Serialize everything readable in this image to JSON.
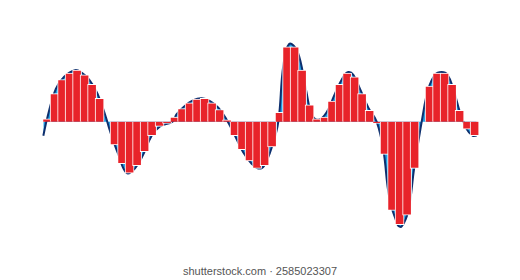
{
  "chart_data": {
    "type": "bar",
    "tick_labels": false,
    "grid": false,
    "annotations": [
      "shutterstock.com · 2585023307"
    ],
    "xlim": [
      0,
      520
    ],
    "ylim": [
      -1.5,
      1.3
    ],
    "series": [
      {
        "type": "area",
        "color": "#1e9ce3",
        "x": [
          0,
          5,
          15,
          25,
          38,
          45,
          55,
          65,
          75,
          80,
          90,
          100,
          110,
          120,
          130,
          140,
          155,
          160,
          170,
          180,
          190,
          200,
          210,
          220,
          230,
          240,
          250,
          258,
          265,
          275,
          282,
          288,
          295,
          305,
          315,
          322,
          330,
          340,
          350,
          360,
          366,
          372,
          380,
          390,
          400,
          408,
          415,
          425,
          430,
          438,
          445,
          455,
          462,
          470,
          478,
          485,
          492,
          500,
          508,
          515,
          520
        ],
        "values": [
          -0.15,
          0.05,
          0.35,
          0.48,
          0.55,
          0.53,
          0.45,
          0.3,
          0.05,
          -0.1,
          -0.35,
          -0.55,
          -0.5,
          -0.35,
          -0.15,
          -0.05,
          0.0,
          0.08,
          0.17,
          0.23,
          0.25,
          0.22,
          0.15,
          0.02,
          -0.15,
          -0.33,
          -0.45,
          -0.5,
          -0.47,
          -0.25,
          0.0,
          0.6,
          0.83,
          0.75,
          0.35,
          0.08,
          0.02,
          0.1,
          0.3,
          0.48,
          0.53,
          0.5,
          0.35,
          0.15,
          0.0,
          -0.3,
          -0.8,
          -1.1,
          -1.12,
          -0.95,
          -0.5,
          0.05,
          0.35,
          0.5,
          0.53,
          0.5,
          0.35,
          0.1,
          -0.08,
          -0.15,
          -0.15
        ]
      },
      {
        "type": "bar",
        "color": "#e8232a",
        "x": [
          4.5,
          13.5,
          22.5,
          31.5,
          40.5,
          49.5,
          58.5,
          67.5,
          76.5,
          85.5,
          94.5,
          103.5,
          112.5,
          121.5,
          130.5,
          139.5,
          148.5,
          157.5,
          166.5,
          175.5,
          184.5,
          193.5,
          202.5,
          211.5,
          220.5,
          229.5,
          238.5,
          247.5,
          256.5,
          265.5,
          274.5,
          283.5,
          292.5,
          301.5,
          310.5,
          319.5,
          328.5,
          337.5,
          346.5,
          355.5,
          364.5,
          373.5,
          382.5,
          391.5,
          400.5,
          409.5,
          418.5,
          427.5,
          436.5,
          445.5,
          454.5,
          463.5,
          472.5,
          481.5,
          490.5,
          499.5,
          508.5,
          517.5
        ],
        "values": [
          0.03,
          0.3,
          0.45,
          0.52,
          0.55,
          0.5,
          0.4,
          0.25,
          0.0,
          -0.25,
          -0.45,
          -0.55,
          -0.47,
          -0.32,
          -0.15,
          -0.05,
          -0.02,
          0.05,
          0.14,
          0.2,
          0.24,
          0.25,
          0.2,
          0.13,
          0.02,
          -0.15,
          -0.3,
          -0.42,
          -0.5,
          -0.47,
          -0.27,
          0.1,
          0.8,
          0.8,
          0.55,
          0.18,
          0.03,
          0.05,
          0.22,
          0.4,
          0.52,
          0.48,
          0.3,
          0.12,
          -0.02,
          -0.35,
          -0.95,
          -1.1,
          -1.0,
          -0.5,
          0.0,
          0.38,
          0.52,
          0.52,
          0.4,
          0.12,
          -0.08,
          -0.15
        ]
      }
    ]
  }
}
